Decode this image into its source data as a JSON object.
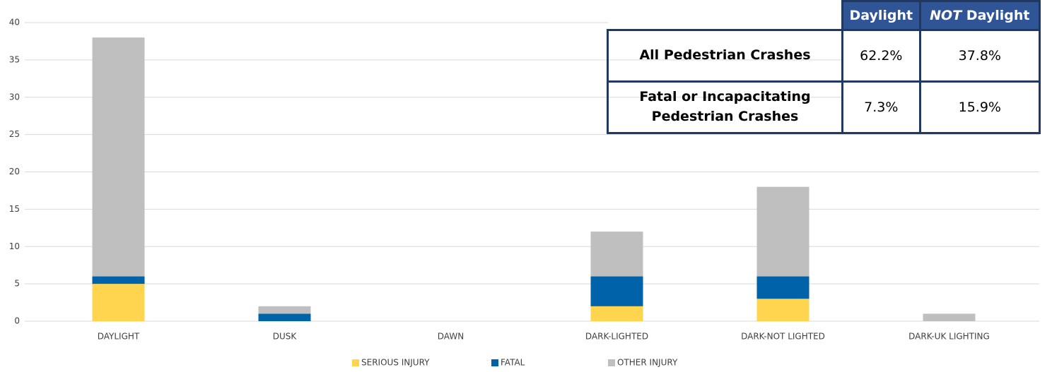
{
  "chart_data": {
    "type": "stacked_bar",
    "categories": [
      "DAYLIGHT",
      "DUSK",
      "DAWN",
      "DARK-LIGHTED",
      "DARK-NOT LIGHTED",
      "DARK-UK LIGHTING"
    ],
    "series": [
      {
        "name": "SERIOUS INJURY",
        "color": "#ffd54f",
        "values": [
          5,
          0,
          0,
          2,
          3,
          0
        ]
      },
      {
        "name": "FATAL",
        "color": "#0062a8",
        "values": [
          1,
          1,
          0,
          4,
          3,
          0
        ]
      },
      {
        "name": "OTHER INJURY",
        "color": "#bfbfbf",
        "values": [
          32,
          1,
          0,
          6,
          12,
          1
        ]
      }
    ],
    "ylim": [
      0,
      40
    ],
    "yticks": [
      0,
      5,
      10,
      15,
      20,
      25,
      30,
      35,
      40
    ],
    "grid": true,
    "legend": "bottom"
  },
  "table": {
    "columns": [
      "Daylight",
      {
        "emphasis": "NOT",
        "text": "Daylight"
      }
    ],
    "rows": [
      {
        "label": "All Pedestrian Crashes",
        "cells": [
          "62.2%",
          "37.8%"
        ]
      },
      {
        "label": "Fatal or Incapacitating Pedestrian Crashes",
        "cells": [
          "7.3%",
          "15.9%"
        ]
      }
    ]
  }
}
